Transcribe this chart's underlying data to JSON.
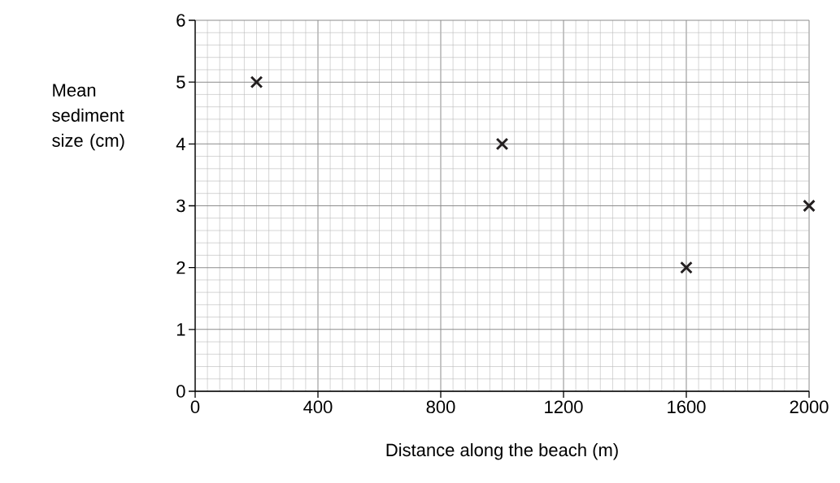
{
  "chart_data": {
    "type": "scatter",
    "xlabel": "Distance along the beach (m)",
    "ylabel": "Mean sediment size (cm)",
    "x": [
      200,
      1000,
      1600,
      2000
    ],
    "values": [
      5,
      4,
      2,
      3
    ],
    "color": "#231f20",
    "xlim": [
      0,
      2000
    ],
    "ylim": [
      0,
      6
    ],
    "xticks": [
      0,
      400,
      800,
      1200,
      1600,
      2000
    ],
    "yticks": [
      0,
      1,
      2,
      3,
      4,
      5,
      6
    ],
    "grid": true,
    "marker": "cross"
  }
}
